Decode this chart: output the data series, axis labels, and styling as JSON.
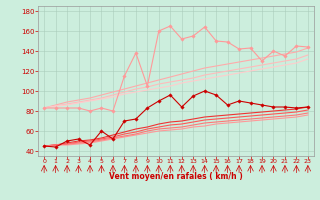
{
  "xlabel": "Vent moyen/en rafales ( km/h )",
  "background_color": "#cceedd",
  "grid_color": "#aaccbb",
  "xlim": [
    -0.5,
    23.5
  ],
  "ylim": [
    35,
    185
  ],
  "yticks": [
    40,
    60,
    80,
    100,
    120,
    140,
    160,
    180
  ],
  "xticks": [
    0,
    1,
    2,
    3,
    4,
    5,
    6,
    7,
    8,
    9,
    10,
    11,
    12,
    13,
    14,
    15,
    16,
    17,
    18,
    19,
    20,
    21,
    22,
    23
  ],
  "series": [
    {
      "x": [
        0,
        1,
        2,
        3,
        4,
        5,
        6,
        7,
        8,
        9,
        10,
        11,
        12,
        13,
        14,
        15,
        16,
        17,
        18,
        19,
        20,
        21,
        22,
        23
      ],
      "y": [
        83,
        83,
        83,
        83,
        80,
        83,
        80,
        115,
        138,
        105,
        160,
        165,
        152,
        155,
        164,
        150,
        149,
        142,
        143,
        130,
        140,
        135,
        145,
        144
      ],
      "color": "#ff9999",
      "linewidth": 0.8,
      "marker": "D",
      "markersize": 1.8,
      "zorder": 5
    },
    {
      "x": [
        0,
        1,
        2,
        3,
        4,
        5,
        6,
        7,
        8,
        9,
        10,
        11,
        12,
        13,
        14,
        15,
        16,
        17,
        18,
        19,
        20,
        21,
        22,
        23
      ],
      "y": [
        83,
        86,
        89,
        91,
        93,
        96,
        99,
        102,
        105,
        108,
        111,
        114,
        117,
        120,
        123,
        125,
        127,
        129,
        131,
        133,
        135,
        137,
        139,
        143
      ],
      "color": "#ffaaaa",
      "linewidth": 0.8,
      "marker": null,
      "zorder": 3
    },
    {
      "x": [
        0,
        1,
        2,
        3,
        4,
        5,
        6,
        7,
        8,
        9,
        10,
        11,
        12,
        13,
        14,
        15,
        16,
        17,
        18,
        19,
        20,
        21,
        22,
        23
      ],
      "y": [
        83,
        85,
        87,
        89,
        91,
        93,
        96,
        99,
        102,
        104,
        107,
        109,
        111,
        113,
        116,
        118,
        120,
        122,
        124,
        126,
        128,
        130,
        132,
        136
      ],
      "color": "#ffbbbb",
      "linewidth": 0.8,
      "marker": null,
      "zorder": 3
    },
    {
      "x": [
        0,
        1,
        2,
        3,
        4,
        5,
        6,
        7,
        8,
        9,
        10,
        11,
        12,
        13,
        14,
        15,
        16,
        17,
        18,
        19,
        20,
        21,
        22,
        23
      ],
      "y": [
        83,
        85,
        86,
        88,
        90,
        92,
        94,
        97,
        99,
        101,
        103,
        105,
        108,
        110,
        112,
        114,
        116,
        118,
        120,
        122,
        124,
        126,
        128,
        132
      ],
      "color": "#ffcccc",
      "linewidth": 0.8,
      "marker": null,
      "zorder": 3
    },
    {
      "x": [
        0,
        1,
        2,
        3,
        4,
        5,
        6,
        7,
        8,
        9,
        10,
        11,
        12,
        13,
        14,
        15,
        16,
        17,
        18,
        19,
        20,
        21,
        22,
        23
      ],
      "y": [
        45,
        44,
        50,
        52,
        46,
        60,
        52,
        70,
        72,
        83,
        90,
        96,
        84,
        95,
        100,
        96,
        86,
        90,
        88,
        86,
        84,
        84,
        83,
        84
      ],
      "color": "#cc0000",
      "linewidth": 0.8,
      "marker": "D",
      "markersize": 1.8,
      "zorder": 6
    },
    {
      "x": [
        0,
        1,
        2,
        3,
        4,
        5,
        6,
        7,
        8,
        9,
        10,
        11,
        12,
        13,
        14,
        15,
        16,
        17,
        18,
        19,
        20,
        21,
        22,
        23
      ],
      "y": [
        45,
        46,
        48,
        50,
        51,
        53,
        56,
        59,
        62,
        64,
        67,
        69,
        70,
        72,
        74,
        75,
        76,
        77,
        78,
        79,
        80,
        81,
        82,
        84
      ],
      "color": "#ee3333",
      "linewidth": 0.8,
      "marker": null,
      "zorder": 4
    },
    {
      "x": [
        0,
        1,
        2,
        3,
        4,
        5,
        6,
        7,
        8,
        9,
        10,
        11,
        12,
        13,
        14,
        15,
        16,
        17,
        18,
        19,
        20,
        21,
        22,
        23
      ],
      "y": [
        45,
        46,
        47,
        49,
        50,
        52,
        54,
        57,
        59,
        62,
        64,
        66,
        67,
        69,
        71,
        72,
        73,
        74,
        75,
        76,
        77,
        78,
        79,
        81
      ],
      "color": "#ff5555",
      "linewidth": 0.8,
      "marker": null,
      "zorder": 4
    },
    {
      "x": [
        0,
        1,
        2,
        3,
        4,
        5,
        6,
        7,
        8,
        9,
        10,
        11,
        12,
        13,
        14,
        15,
        16,
        17,
        18,
        19,
        20,
        21,
        22,
        23
      ],
      "y": [
        45,
        46,
        47,
        48,
        49,
        51,
        53,
        55,
        57,
        60,
        62,
        63,
        64,
        66,
        68,
        69,
        70,
        71,
        72,
        73,
        74,
        75,
        76,
        78
      ],
      "color": "#ff7777",
      "linewidth": 0.8,
      "marker": null,
      "zorder": 4
    },
    {
      "x": [
        0,
        1,
        2,
        3,
        4,
        5,
        6,
        7,
        8,
        9,
        10,
        11,
        12,
        13,
        14,
        15,
        16,
        17,
        18,
        19,
        20,
        21,
        22,
        23
      ],
      "y": [
        45,
        46,
        46,
        47,
        48,
        50,
        52,
        54,
        56,
        58,
        60,
        61,
        62,
        64,
        65,
        67,
        68,
        69,
        70,
        71,
        72,
        73,
        74,
        76
      ],
      "color": "#ff9999",
      "linewidth": 0.8,
      "marker": null,
      "zorder": 3
    }
  ]
}
